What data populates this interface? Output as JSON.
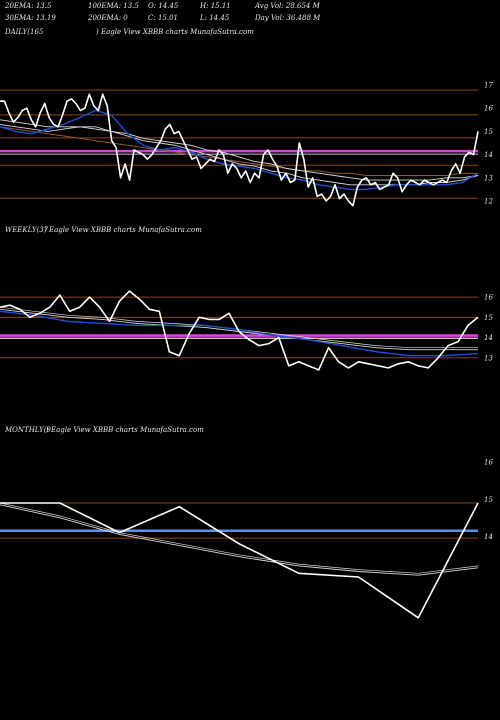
{
  "header": {
    "line1": [
      "20EMA: 13.5",
      "100EMA: 13.5",
      "O: 14.45",
      "H: 15.11",
      "Avg Vol: 28.654  M"
    ],
    "line2": [
      "30EMA: 13.19",
      "200EMA: 0",
      "C: 15.01",
      "L: 14.45",
      "Day Vol: 36.488 M"
    ]
  },
  "colors": {
    "background": "#000000",
    "price": "#ffffff",
    "ema_fast": "#1f4fd8",
    "ema_slow": "#d8d8d8",
    "ema_ribbon": "#8b5a2b",
    "level": "#8b4513",
    "magenta": "#e040e0",
    "blue_level": "#5b8ff0"
  },
  "chart_data": [
    {
      "type": "line",
      "panel": "daily",
      "title": "DAILY(165",
      "subtitle": ") Eagle  View  XBBB charts MunafaSutra.com",
      "y_ticks": [
        17,
        16,
        15,
        14,
        13,
        12
      ],
      "ylim": [
        11.7,
        17.3
      ],
      "levels": [
        16.78,
        15.71,
        14.72,
        13.54,
        12.12
      ],
      "highlight_level": 14.15,
      "series": [
        {
          "role": "price",
          "values": [
            16.3,
            16.3,
            15.8,
            15.4,
            15.6,
            15.9,
            16.0,
            15.5,
            15.2,
            15.8,
            16.2,
            15.6,
            15.3,
            15.2,
            15.7,
            16.3,
            16.4,
            16.2,
            15.9,
            16.0,
            16.6,
            16.1,
            15.9,
            16.6,
            16.1,
            14.6,
            14.3,
            13.0,
            13.6,
            12.9,
            14.2,
            14.1,
            14.0,
            13.8,
            14.0,
            14.3,
            14.6,
            15.1,
            15.3,
            14.9,
            15.0,
            14.6,
            14.2,
            13.8,
            13.9,
            13.4,
            13.6,
            13.8,
            13.7,
            14.2,
            14.0,
            13.2,
            13.6,
            13.4,
            13.0,
            13.3,
            12.8,
            13.2,
            13.0,
            14.0,
            14.2,
            13.8,
            13.5,
            12.9,
            13.2,
            12.8,
            12.9,
            14.5,
            13.8,
            12.6,
            13.0,
            12.2,
            12.3,
            12.0,
            12.2,
            12.7,
            12.1,
            12.3,
            12.0,
            11.8,
            12.6,
            12.9,
            13.0,
            12.7,
            12.8,
            12.5,
            12.6,
            12.7,
            13.2,
            13.0,
            12.4,
            12.7,
            12.9,
            12.8,
            12.7,
            12.9,
            12.8,
            12.7,
            12.8,
            12.9,
            12.8,
            13.3,
            13.6,
            13.2,
            13.9,
            14.1,
            14.0,
            15.0
          ]
        },
        {
          "role": "ema_fast",
          "values": [
            15.2,
            15.0,
            14.9,
            15.1,
            15.3,
            15.6,
            15.9,
            15.7,
            14.9,
            14.4,
            14.2,
            14.3,
            14.1,
            13.8,
            13.6,
            13.5,
            13.4,
            13.2,
            13.0,
            12.9,
            12.7,
            12.6,
            12.5,
            12.5,
            12.6,
            12.7,
            12.7,
            12.7,
            12.7,
            12.8,
            13.2
          ]
        },
        {
          "role": "ema_mid",
          "values": [
            15.3,
            15.2,
            15.1,
            15.0,
            15.1,
            15.2,
            15.2,
            15.0,
            14.8,
            14.6,
            14.5,
            14.4,
            14.2,
            14.0,
            13.8,
            13.6,
            13.5,
            13.3,
            13.2,
            13.0,
            12.9,
            12.8,
            12.7,
            12.7,
            12.7,
            12.7,
            12.7,
            12.8,
            12.8,
            12.9,
            13.1
          ]
        },
        {
          "role": "ema_slow",
          "values": [
            15.5,
            15.4,
            15.3,
            15.2,
            15.2,
            15.2,
            15.1,
            15.0,
            14.9,
            14.7,
            14.6,
            14.5,
            14.4,
            14.2,
            14.1,
            13.9,
            13.7,
            13.6,
            13.4,
            13.3,
            13.2,
            13.1,
            13.0,
            12.9,
            12.9,
            12.9,
            12.9,
            12.9,
            13.0,
            13.0,
            13.1
          ]
        },
        {
          "role": "ema_ribbon",
          "values": [
            15.2,
            15.1,
            15.0,
            14.9,
            14.8,
            14.7,
            14.6,
            14.5,
            14.4,
            14.3,
            14.2,
            14.1,
            14.0,
            13.9,
            13.8,
            13.7,
            13.6,
            13.5,
            13.4,
            13.3,
            13.3,
            13.2,
            13.2,
            13.1,
            13.1,
            13.1,
            13.1,
            13.1,
            13.1,
            13.2,
            13.2
          ]
        }
      ]
    },
    {
      "type": "line",
      "panel": "weekly",
      "title": "WEEKLY(37",
      "subtitle": ") Eagle  View  XBBB charts MunafaSutra.com",
      "y_ticks": [
        16,
        15,
        14,
        13
      ],
      "ylim": [
        11.9,
        16.6
      ],
      "levels": [
        16.0,
        15.0,
        14.0,
        13.0
      ],
      "highlight_level": 14.1,
      "series": [
        {
          "role": "price",
          "values": [
            15.5,
            15.6,
            15.4,
            15.0,
            15.2,
            15.5,
            16.1,
            15.3,
            15.5,
            16.0,
            15.5,
            14.8,
            15.8,
            16.3,
            15.9,
            15.4,
            15.3,
            13.3,
            13.1,
            14.2,
            15.0,
            14.9,
            14.9,
            15.2,
            14.3,
            13.9,
            13.6,
            13.7,
            14.0,
            12.6,
            12.8,
            12.6,
            12.4,
            13.5,
            12.8,
            12.5,
            12.8,
            12.7,
            12.6,
            12.5,
            12.7,
            12.8,
            12.6,
            12.5,
            13.0,
            13.6,
            13.8,
            14.6,
            15.0
          ]
        },
        {
          "role": "ema_fast",
          "values": [
            15.3,
            15.1,
            14.8,
            14.7,
            14.6,
            14.6,
            14.6,
            14.4,
            14.1,
            13.9,
            13.6,
            13.3,
            13.1,
            13.1,
            13.2
          ]
        },
        {
          "role": "ema_slow",
          "values": [
            15.4,
            15.2,
            15.0,
            14.9,
            14.7,
            14.6,
            14.5,
            14.3,
            14.1,
            13.9,
            13.7,
            13.5,
            13.4,
            13.4,
            13.4
          ]
        },
        {
          "role": "ema_slow2",
          "values": [
            15.5,
            15.3,
            15.1,
            15.0,
            14.8,
            14.7,
            14.6,
            14.4,
            14.2,
            14.0,
            13.8,
            13.6,
            13.5,
            13.5,
            13.5
          ]
        }
      ]
    },
    {
      "type": "line",
      "panel": "monthly",
      "title": "MONTHLY(9",
      "subtitle": ") Eagle  View  XBBB charts MunafaSutra.com",
      "y_ticks": [
        16,
        15,
        14
      ],
      "ylim": [
        11.2,
        16.6
      ],
      "levels": [
        14.9,
        13.95
      ],
      "highlight_level": 14.15,
      "series": [
        {
          "role": "price",
          "values": [
            14.9,
            14.9,
            14.1,
            14.8,
            13.8,
            13.0,
            12.9,
            11.8,
            14.9
          ]
        },
        {
          "role": "ema_slow",
          "values": [
            14.85,
            14.5,
            14.05,
            13.75,
            13.45,
            13.2,
            13.05,
            12.95,
            13.15
          ]
        },
        {
          "role": "ema_slow2",
          "values": [
            14.9,
            14.55,
            14.1,
            13.8,
            13.5,
            13.25,
            13.1,
            13.0,
            13.2
          ]
        }
      ]
    }
  ]
}
